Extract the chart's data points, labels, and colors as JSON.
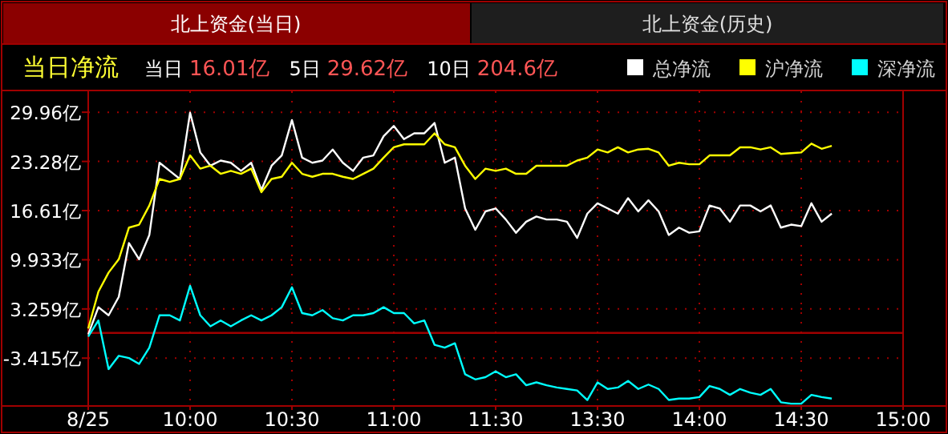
{
  "chart_data": {
    "type": "line",
    "title": "当日净流",
    "annotations": [
      "北上资金(当日)",
      "北上资金(历史)",
      "当日",
      "16.01亿",
      "5日",
      "29.62亿",
      "10日",
      "204.6亿"
    ],
    "categories": [
      "8/25",
      null,
      null,
      null,
      null,
      null,
      null,
      null,
      null,
      null,
      "10:00",
      null,
      null,
      null,
      null,
      null,
      null,
      null,
      null,
      null,
      "10:30",
      null,
      null,
      null,
      null,
      null,
      null,
      null,
      null,
      null,
      "11:00",
      null,
      null,
      null,
      null,
      null,
      null,
      null,
      null,
      null,
      "11:30",
      null,
      null,
      null,
      null,
      null,
      null,
      null,
      null,
      null,
      "13:30",
      null,
      null,
      null,
      null,
      null,
      null,
      null,
      null,
      null,
      "14:00",
      null,
      null,
      null,
      null,
      null,
      null,
      null,
      null,
      null,
      "14:30",
      null,
      null,
      null,
      null,
      null,
      null,
      null,
      null,
      null,
      "15:00"
    ],
    "ylim": [
      -9.8,
      32.8
    ],
    "yticks": [
      {
        "value": 29.96,
        "label": "29.96亿"
      },
      {
        "value": 23.28,
        "label": "23.28亿"
      },
      {
        "value": 16.61,
        "label": "16.61亿"
      },
      {
        "value": 9.933,
        "label": "9.933亿"
      },
      {
        "value": 3.259,
        "label": "3.259亿"
      },
      {
        "value": -3.415,
        "label": "-3.415亿"
      }
    ],
    "grid": true,
    "legend": "top right",
    "marker": "none",
    "ref_lines": [
      {
        "axis": "y",
        "value": 0,
        "color": "#a00000"
      }
    ],
    "series": [
      {
        "name": "总净流",
        "color": "#ffffff",
        "values": [
          -0.2,
          3.5,
          2.4,
          4.9,
          12.2,
          10.0,
          13.3,
          23.1,
          22.0,
          20.9,
          29.9,
          24.5,
          22.7,
          23.4,
          23.1,
          22.0,
          23.1,
          19.4,
          22.7,
          24.1,
          28.9,
          23.8,
          23.1,
          23.4,
          24.9,
          23.1,
          22.0,
          23.8,
          24.1,
          26.7,
          28.1,
          26.3,
          27.1,
          27.1,
          28.5,
          23.1,
          23.8,
          16.9,
          14.0,
          16.5,
          16.9,
          15.4,
          13.6,
          15.1,
          15.8,
          15.4,
          15.4,
          15.1,
          12.9,
          16.2,
          17.6,
          16.9,
          16.2,
          18.3,
          16.5,
          18.0,
          16.5,
          13.3,
          14.3,
          13.6,
          13.8,
          17.3,
          16.9,
          15.1,
          17.3,
          17.3,
          16.5,
          17.3,
          14.3,
          14.7,
          14.5,
          17.6,
          15.1,
          16.2,
          null,
          null,
          null,
          null,
          null,
          null,
          null
        ]
      },
      {
        "name": "沪净流",
        "color": "#ffff00",
        "values": [
          0.6,
          5.6,
          8.2,
          10.0,
          14.3,
          14.7,
          17.3,
          20.9,
          20.5,
          20.9,
          24.1,
          22.3,
          22.7,
          21.6,
          22.0,
          21.6,
          22.3,
          19.1,
          20.9,
          21.2,
          23.1,
          21.6,
          21.2,
          21.6,
          21.6,
          21.2,
          20.9,
          21.6,
          22.3,
          23.8,
          25.2,
          25.6,
          25.6,
          25.6,
          27.1,
          25.6,
          25.2,
          22.7,
          20.9,
          22.3,
          22.0,
          22.3,
          21.6,
          21.6,
          22.7,
          22.7,
          22.7,
          22.7,
          23.4,
          23.8,
          24.9,
          24.5,
          25.2,
          24.5,
          24.9,
          25.0,
          24.5,
          22.7,
          23.1,
          22.9,
          22.9,
          24.1,
          24.1,
          24.1,
          25.2,
          25.2,
          24.9,
          25.2,
          24.3,
          24.4,
          24.5,
          25.7,
          25.0,
          25.4,
          null,
          null,
          null,
          null,
          null,
          null,
          null
        ]
      },
      {
        "name": "深净流",
        "color": "#00ffff",
        "values": [
          -0.5,
          1.7,
          -4.9,
          -3.1,
          -3.4,
          -4.2,
          -2.0,
          2.4,
          2.4,
          1.7,
          6.4,
          2.4,
          0.9,
          1.7,
          0.9,
          1.7,
          2.4,
          1.7,
          2.4,
          3.5,
          6.2,
          2.7,
          2.4,
          3.1,
          2.0,
          1.7,
          2.4,
          2.4,
          2.7,
          3.5,
          2.7,
          2.7,
          1.3,
          1.7,
          -1.6,
          -2.0,
          -1.4,
          -5.6,
          -6.3,
          -6.0,
          -5.2,
          -6.0,
          -5.6,
          -7.1,
          -6.7,
          -7.1,
          -7.4,
          -7.6,
          -7.8,
          -9.1,
          -6.7,
          -7.6,
          -7.4,
          -6.5,
          -7.6,
          -7.0,
          -7.6,
          -9.1,
          -8.9,
          -8.9,
          -8.7,
          -7.2,
          -7.6,
          -8.4,
          -7.6,
          -8.1,
          -8.4,
          -7.6,
          -9.4,
          -9.6,
          -9.6,
          -8.4,
          -8.7,
          -8.9,
          null,
          null,
          null,
          null,
          null,
          null,
          null
        ]
      }
    ]
  }
}
